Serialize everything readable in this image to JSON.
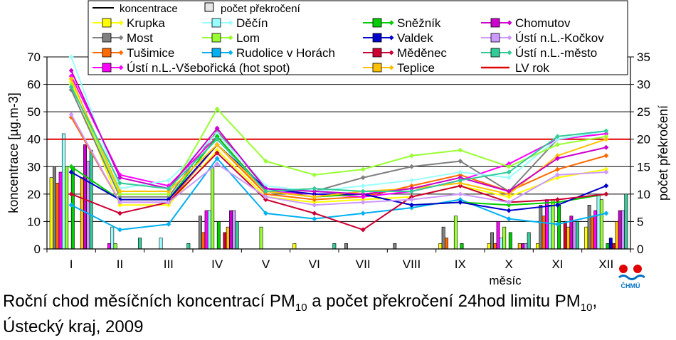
{
  "chart_data": {
    "type": "bar+line",
    "categories": [
      "I",
      "II",
      "III",
      "IV",
      "V",
      "VI",
      "VII",
      "VIII",
      "IX",
      "X",
      "XI",
      "XII"
    ],
    "xlabel": "měsíc",
    "ylabel": "koncentrace [µg.m-3]",
    "ylabel2": "počet překročení",
    "ylim": [
      0,
      70
    ],
    "ylim2": [
      0,
      35
    ],
    "yticks": [
      0,
      10,
      20,
      30,
      40,
      50,
      60,
      70
    ],
    "yticks2": [
      0,
      5,
      10,
      15,
      20,
      25,
      30,
      35
    ],
    "grid": true,
    "legend_placement": "top",
    "legend_headers": {
      "line": "koncentrace",
      "bar": "počet překročení"
    },
    "limit": {
      "name": "LV rok",
      "value": 40,
      "color": "#e00000"
    },
    "series": [
      {
        "name": "Krupka",
        "color": "#ffff00",
        "values": [
          61,
          16,
          16,
          36,
          19,
          17,
          18,
          19,
          23,
          19,
          26,
          29
        ],
        "exceedances": [
          13,
          0,
          0,
          0,
          0,
          1,
          0,
          0,
          1,
          1,
          1,
          4
        ]
      },
      {
        "name": "Most",
        "color": "#808080",
        "values": [
          58,
          19,
          19,
          43,
          22,
          21,
          26,
          30,
          32,
          21,
          40,
          42
        ],
        "exceedances": [
          15,
          0,
          0,
          6,
          0,
          0,
          1,
          1,
          4,
          3,
          8,
          8
        ]
      },
      {
        "name": "Tušimice",
        "color": "#ff6a00",
        "values": [
          48,
          17,
          17,
          38,
          20,
          18,
          19,
          23,
          27,
          21,
          29,
          34
        ],
        "exceedances": [
          12,
          0,
          0,
          3,
          0,
          0,
          0,
          0,
          2,
          1,
          6,
          6
        ]
      },
      {
        "name": "Ústí n.L.-Všebořická (hot spot)",
        "color": "#ff00ff",
        "values": [
          63,
          27,
          23,
          41,
          21,
          20,
          19,
          21,
          25,
          31,
          40,
          42
        ],
        "exceedances": [
          14,
          1,
          0,
          7,
          0,
          0,
          0,
          0,
          0,
          5,
          9,
          7
        ]
      },
      {
        "name": "Děčín",
        "color": "#99ffff",
        "values": [
          70,
          22,
          25,
          42,
          23,
          21,
          23,
          25,
          28,
          26,
          40,
          43
        ],
        "exceedances": [
          21,
          4,
          2,
          7,
          0,
          0,
          0,
          0,
          0,
          2,
          8,
          10
        ]
      },
      {
        "name": "Lom",
        "color": "#99ff33",
        "values": [
          60,
          20,
          20,
          51,
          32,
          27,
          29,
          34,
          36,
          30,
          38,
          41
        ],
        "exceedances": [
          15,
          1,
          0,
          15,
          4,
          0,
          0,
          0,
          6,
          4,
          9,
          9
        ]
      },
      {
        "name": "Rudolice v Horách",
        "color": "#00b0f0",
        "values": [
          16,
          7,
          9,
          33,
          13,
          11,
          13,
          15,
          18,
          11,
          9,
          13
        ],
        "exceedances": [
          0,
          0,
          0,
          0,
          0,
          0,
          0,
          0,
          0,
          0,
          0,
          0
        ]
      },
      {
        "name": "Sněžník",
        "color": "#00cc00",
        "values": [
          30,
          18,
          18,
          41,
          21,
          19,
          20,
          16,
          17,
          16,
          17,
          20
        ],
        "exceedances": [
          15,
          0,
          0,
          5,
          0,
          0,
          0,
          0,
          1,
          3,
          8,
          1
        ]
      },
      {
        "name": "Valdek",
        "color": "#0000cc",
        "values": [
          28,
          18,
          18,
          38,
          22,
          20,
          20,
          16,
          17,
          14,
          16,
          23
        ],
        "exceedances": [
          0,
          0,
          0,
          0,
          0,
          0,
          0,
          0,
          0,
          0,
          0,
          2
        ]
      },
      {
        "name": "Měděnec",
        "color": "#cc0033",
        "values": [
          20,
          13,
          17,
          35,
          18,
          13,
          7,
          19,
          23,
          17,
          18,
          20
        ],
        "exceedances": [
          0,
          0,
          0,
          3,
          0,
          0,
          0,
          0,
          0,
          0,
          5,
          1
        ]
      },
      {
        "name": "Teplice",
        "color": "#ffc000",
        "values": [
          62,
          21,
          21,
          38,
          21,
          19,
          21,
          22,
          24,
          20,
          34,
          40
        ],
        "exceedances": [
          13,
          0,
          0,
          4,
          0,
          0,
          0,
          0,
          0,
          1,
          4,
          5
        ]
      },
      {
        "name": "Chomutov",
        "color": "#cc00cc",
        "values": [
          65,
          26,
          22,
          44,
          22,
          21,
          20,
          22,
          26,
          21,
          33,
          37
        ],
        "exceedances": [
          19,
          0,
          0,
          7,
          0,
          0,
          0,
          0,
          0,
          1,
          6,
          7
        ]
      },
      {
        "name": "Ústí n.L.-Kočkov",
        "color": "#cc99ff",
        "values": [
          49,
          17,
          17,
          31,
          19,
          16,
          17,
          18,
          20,
          17,
          27,
          28
        ],
        "exceedances": [
          16,
          0,
          0,
          7,
          0,
          0,
          0,
          0,
          0,
          1,
          5,
          7
        ]
      },
      {
        "name": "Ústí n.L.-město",
        "color": "#33cc99",
        "values": [
          59,
          24,
          22,
          40,
          21,
          22,
          21,
          21,
          25,
          28,
          41,
          43
        ],
        "exceedances": [
          18,
          2,
          1,
          5,
          0,
          1,
          0,
          0,
          0,
          3,
          5,
          10
        ]
      }
    ]
  },
  "caption": {
    "prefix": "Roční chod měsíčních koncentrací PM",
    "sub1": "10",
    "middle": " a počet překročení 24hod limitu PM",
    "sub2": "10",
    "suffix": ",",
    "line2": "Ústecký kraj, 2009"
  },
  "logo": {
    "text": "ČHMÚ",
    "color": "#e00000",
    "wave_color": "#0070c0"
  }
}
